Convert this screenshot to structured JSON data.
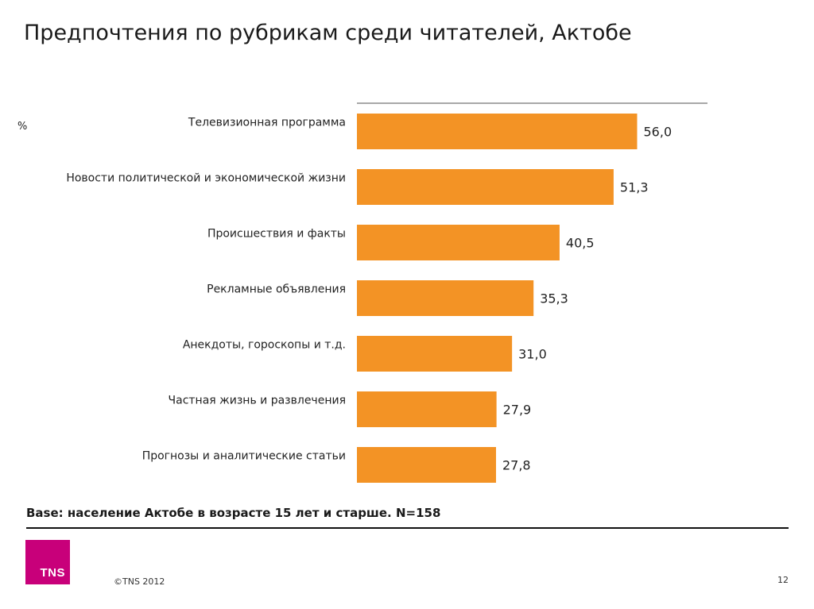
{
  "header": {
    "title": "Предпочтения по рубрикам среди читателей, Актобе"
  },
  "chart_data": {
    "type": "bar",
    "orientation": "horizontal",
    "unit_label": "%",
    "categories": [
      "Телевизионная программа",
      "Новости политической и экономической жизни",
      "Происшествия и факты",
      "Рекламные объявления",
      "Анекдоты, гороскопы и т.д.",
      "Частная жизнь и развлечения",
      "Прогнозы и аналитические статьи"
    ],
    "values": [
      56.0,
      51.3,
      40.5,
      35.3,
      31.0,
      27.9,
      27.8
    ],
    "value_labels": [
      "56,0",
      "51,3",
      "40,5",
      "35,3",
      "31,0",
      "27,9",
      "27,8"
    ],
    "xlim": [
      0,
      70
    ],
    "bar_color": "#f39325",
    "grid": false
  },
  "footer": {
    "base_note": "Base: население Актобе в возрасте 15 лет и старше. N=158",
    "logo_text": "TNS",
    "logo_color": "#c8007a",
    "copyright": "©TNS 2012",
    "page_number": "12"
  }
}
